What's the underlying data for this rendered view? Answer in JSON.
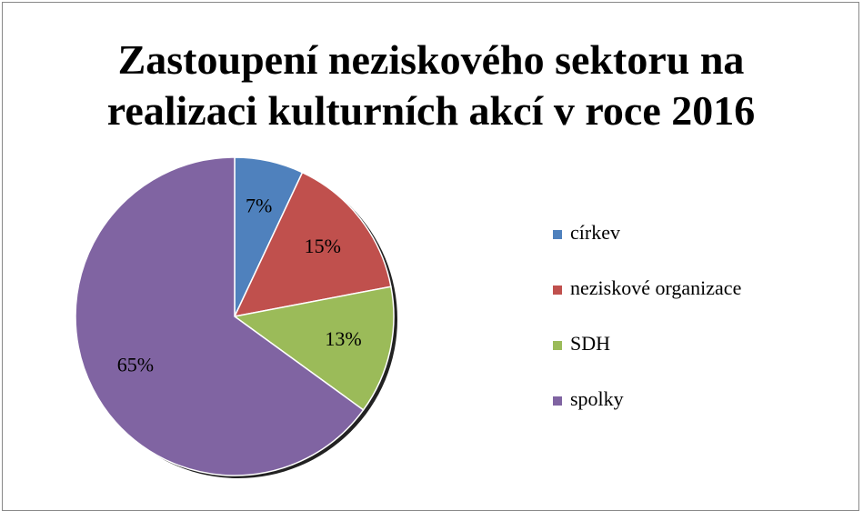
{
  "chart_data": {
    "type": "pie",
    "title": "Zastoupení neziskového sektoru na realizaci kulturních akcí v roce 2016",
    "categories": [
      "církev",
      "neziskové organizace",
      "SDH",
      "spolky"
    ],
    "values": [
      7,
      15,
      13,
      65
    ],
    "value_labels": [
      "7%",
      "15%",
      "13%",
      "65%"
    ],
    "colors": [
      "#4f81bd",
      "#c0504d",
      "#9bbb59",
      "#8064a2"
    ],
    "legend": "right"
  }
}
